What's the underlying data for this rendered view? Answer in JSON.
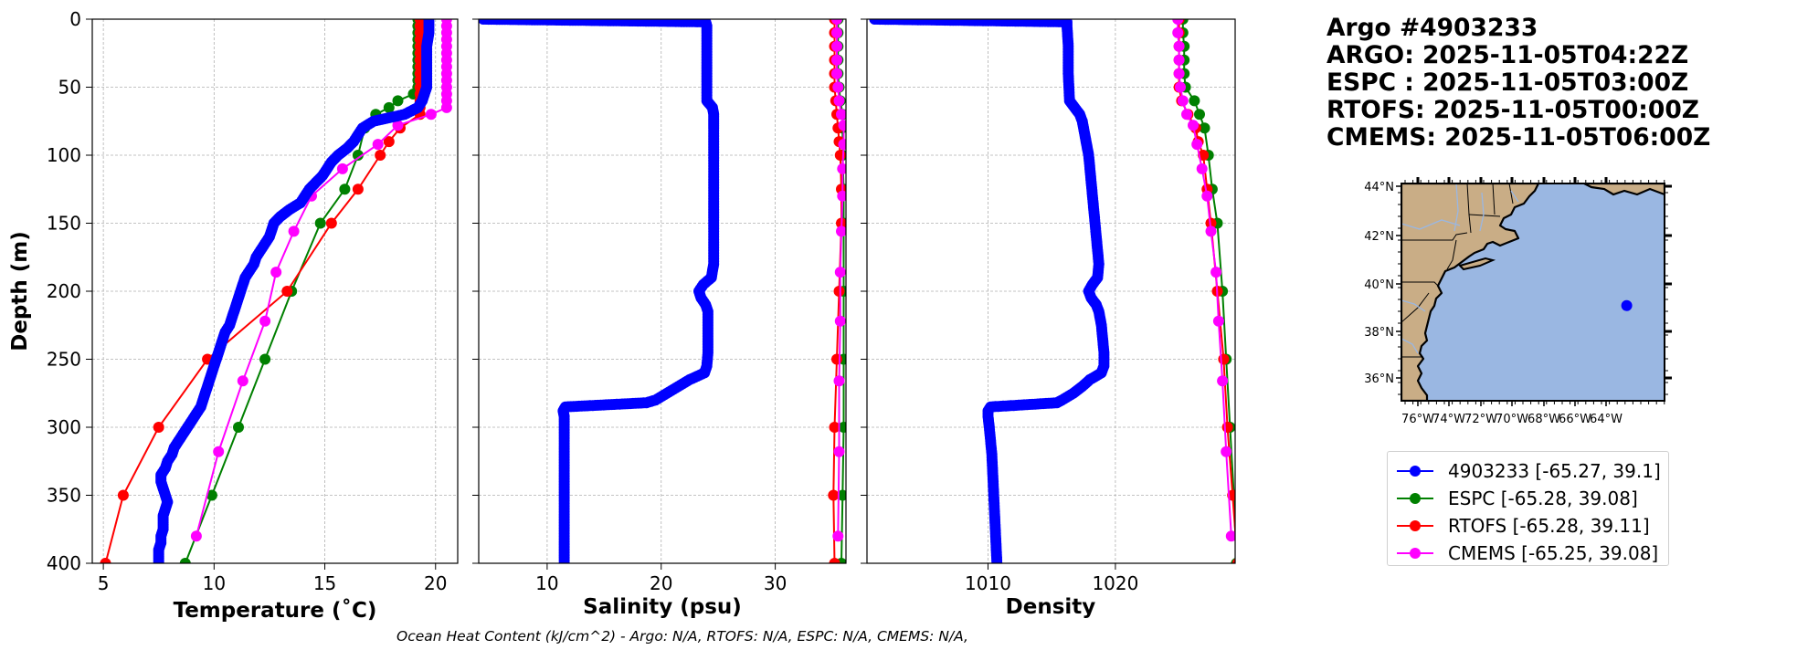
{
  "title": {
    "float_line": "Argo #4903233",
    "argo_line": "ARGO: 2025-11-05T04:22Z",
    "espc_line": "ESPC : 2025-11-05T03:00Z",
    "rtofs_line": "RTOFS: 2025-11-05T00:00Z",
    "cmems_line": "CMEMS: 2025-11-05T06:00Z"
  },
  "footnote": "Ocean Heat Content (kJ/cm^2) - Argo: N/A,  RTOFS: N/A,  ESPC: N/A,  CMEMS: N/A,",
  "colors": {
    "argo": "#0000ff",
    "espc": "#008000",
    "rtofs": "#ff0000",
    "cmems": "#ff00ff",
    "ocean": "#9ab7e2",
    "land": "#c9ad86"
  },
  "legend": [
    {
      "label": "4903233 [-65.27, 39.1]",
      "color": "#0000ff"
    },
    {
      "label": "ESPC [-65.28, 39.08]",
      "color": "#008000"
    },
    {
      "label": "RTOFS [-65.28, 39.11]",
      "color": "#ff0000"
    },
    {
      "label": "CMEMS [-65.25, 39.08]",
      "color": "#ff00ff"
    }
  ],
  "map": {
    "lat_ticks": [
      "44°N",
      "42°N",
      "40°N",
      "38°N",
      "36°N"
    ],
    "lon_ticks": [
      "76°W",
      "74°W",
      "72°W",
      "70°W",
      "68°W",
      "66°W",
      "64°W"
    ],
    "float_position": {
      "lon": -65.27,
      "lat": 39.1
    }
  },
  "chart_data": [
    {
      "type": "line",
      "id": "temperature",
      "xlabel": "Temperature (˚C)",
      "ylabel": "Depth (m)",
      "xlim": [
        4.5,
        21
      ],
      "ylim": [
        400,
        0
      ],
      "xticks": [
        5,
        10,
        15,
        20
      ],
      "yticks": [
        0,
        50,
        100,
        150,
        200,
        250,
        300,
        350,
        400
      ],
      "grid": true,
      "series": [
        {
          "name": "Argo",
          "color": "#0000ff",
          "depth": [
            0,
            10,
            20,
            30,
            40,
            50,
            55,
            60,
            65,
            70,
            75,
            80,
            85,
            90,
            95,
            100,
            105,
            110,
            115,
            120,
            125,
            130,
            135,
            140,
            145,
            150,
            155,
            160,
            165,
            170,
            175,
            180,
            185,
            190,
            195,
            200,
            205,
            210,
            215,
            220,
            225,
            230,
            235,
            240,
            245,
            250,
            255,
            260,
            265,
            270,
            275,
            280,
            285,
            290,
            295,
            300,
            305,
            310,
            315,
            320,
            325,
            330,
            335,
            340,
            345,
            350,
            355,
            360,
            365,
            370,
            375,
            380,
            385,
            390,
            395,
            400
          ],
          "values": [
            19.7,
            19.7,
            19.6,
            19.6,
            19.6,
            19.6,
            19.5,
            19.4,
            19.2,
            18.6,
            17.2,
            16.7,
            16.5,
            16.3,
            16.0,
            15.6,
            15.3,
            15.1,
            14.9,
            14.6,
            14.3,
            14.1,
            13.9,
            13.4,
            13.0,
            12.7,
            12.6,
            12.5,
            12.3,
            12.1,
            11.9,
            11.8,
            11.6,
            11.4,
            11.3,
            11.2,
            11.1,
            11.0,
            10.9,
            10.8,
            10.7,
            10.5,
            10.4,
            10.3,
            10.2,
            10.1,
            10.0,
            9.9,
            9.8,
            9.7,
            9.6,
            9.5,
            9.4,
            9.2,
            9.0,
            8.8,
            8.6,
            8.4,
            8.2,
            8.1,
            7.9,
            7.8,
            7.6,
            7.6,
            7.7,
            7.8,
            7.9,
            7.8,
            7.7,
            7.7,
            7.7,
            7.6,
            7.6,
            7.5,
            7.5,
            7.5
          ]
        },
        {
          "name": "ESPC",
          "color": "#008000",
          "depth": [
            0,
            5,
            10,
            15,
            20,
            25,
            30,
            35,
            40,
            45,
            50,
            55,
            60,
            65,
            70,
            80,
            100,
            125,
            150,
            200,
            250,
            300,
            350,
            400
          ],
          "values": [
            19.2,
            19.2,
            19.2,
            19.2,
            19.2,
            19.2,
            19.2,
            19.2,
            19.2,
            19.2,
            19.2,
            19.0,
            18.3,
            17.9,
            17.3,
            16.8,
            16.5,
            15.9,
            14.8,
            13.5,
            12.3,
            11.1,
            9.9,
            8.7
          ]
        },
        {
          "name": "RTOFS",
          "color": "#ff0000",
          "depth": [
            0,
            5,
            10,
            15,
            20,
            25,
            30,
            35,
            40,
            45,
            50,
            55,
            60,
            65,
            70,
            80,
            90,
            100,
            125,
            150,
            200,
            250,
            300,
            350,
            400
          ],
          "values": [
            19.3,
            19.3,
            19.3,
            19.3,
            19.3,
            19.3,
            19.3,
            19.3,
            19.3,
            19.3,
            19.3,
            19.3,
            19.3,
            19.3,
            19.3,
            18.4,
            17.9,
            17.5,
            16.5,
            15.3,
            13.3,
            9.7,
            7.5,
            5.9,
            5.1
          ]
        },
        {
          "name": "CMEMS",
          "color": "#ff00ff",
          "depth": [
            0,
            5,
            10,
            15,
            20,
            25,
            30,
            35,
            40,
            45,
            50,
            55,
            60,
            65,
            70,
            78,
            92,
            110,
            130,
            156,
            186,
            222,
            266,
            318,
            380
          ],
          "values": [
            20.5,
            20.5,
            20.5,
            20.5,
            20.5,
            20.5,
            20.5,
            20.5,
            20.5,
            20.5,
            20.5,
            20.5,
            20.5,
            20.5,
            19.8,
            18.3,
            17.4,
            15.8,
            14.4,
            13.6,
            12.8,
            12.3,
            11.3,
            10.2,
            9.2
          ]
        }
      ]
    },
    {
      "type": "line",
      "id": "salinity",
      "xlabel": "Salinity (psu)",
      "xlim": [
        4,
        36.2
      ],
      "ylim": [
        400,
        0
      ],
      "xticks": [
        10,
        20,
        30
      ],
      "yticks": [
        0,
        50,
        100,
        150,
        200,
        250,
        300,
        350,
        400
      ],
      "grid": true,
      "series": [
        {
          "name": "Argo",
          "color": "#0000ff",
          "depth": [
            0,
            2,
            5,
            10,
            20,
            30,
            40,
            50,
            60,
            62,
            65,
            70,
            75,
            80,
            90,
            100,
            120,
            140,
            160,
            180,
            190,
            195,
            200,
            205,
            210,
            215,
            225,
            235,
            245,
            255,
            260,
            265,
            270,
            275,
            280,
            282,
            284,
            285,
            288,
            292,
            300,
            320,
            340,
            360,
            380,
            400
          ],
          "values": [
            4.4,
            23.9,
            24.0,
            24.0,
            24.0,
            24.0,
            24.0,
            24.0,
            24.0,
            24.2,
            24.5,
            24.6,
            24.6,
            24.6,
            24.6,
            24.6,
            24.6,
            24.6,
            24.6,
            24.6,
            24.4,
            23.7,
            23.3,
            23.5,
            23.9,
            24.1,
            24.1,
            24.1,
            24.1,
            24.0,
            23.8,
            22.5,
            21.5,
            20.5,
            19.5,
            18.7,
            14.0,
            11.6,
            11.4,
            11.5,
            11.5,
            11.5,
            11.5,
            11.5,
            11.5,
            11.5
          ]
        },
        {
          "name": "ESPC",
          "color": "#008000",
          "depth": [
            0,
            10,
            20,
            30,
            40,
            50,
            60,
            70,
            80,
            100,
            125,
            150,
            200,
            250,
            300,
            350,
            400
          ],
          "values": [
            35.5,
            35.5,
            35.5,
            35.5,
            35.5,
            35.6,
            35.7,
            35.9,
            35.9,
            35.9,
            36.0,
            36.0,
            36.0,
            36.0,
            36.0,
            35.9,
            35.8
          ]
        },
        {
          "name": "RTOFS",
          "color": "#ff0000",
          "depth": [
            0,
            10,
            20,
            30,
            40,
            50,
            60,
            70,
            80,
            90,
            100,
            125,
            150,
            200,
            250,
            300,
            350,
            400
          ],
          "values": [
            35.2,
            35.2,
            35.2,
            35.2,
            35.2,
            35.2,
            35.3,
            35.4,
            35.5,
            35.6,
            35.7,
            35.8,
            35.8,
            35.6,
            35.4,
            35.2,
            35.1,
            35.2
          ]
        },
        {
          "name": "CMEMS",
          "color": "#ff00ff",
          "depth": [
            0,
            10,
            20,
            30,
            40,
            50,
            60,
            70,
            78,
            92,
            110,
            130,
            156,
            186,
            222,
            266,
            318,
            380
          ],
          "values": [
            35.4,
            35.4,
            35.4,
            35.4,
            35.4,
            35.5,
            35.6,
            35.8,
            36.0,
            36.0,
            35.9,
            35.9,
            35.8,
            35.7,
            35.7,
            35.6,
            35.6,
            35.5
          ]
        }
      ]
    },
    {
      "type": "line",
      "id": "density",
      "xlabel": "Density",
      "xlim": [
        1000.5,
        1029.4
      ],
      "ylim": [
        400,
        0
      ],
      "xticks": [
        1010,
        1020
      ],
      "yticks": [
        0,
        50,
        100,
        150,
        200,
        250,
        300,
        350,
        400
      ],
      "grid": true,
      "series": [
        {
          "name": "Argo",
          "color": "#0000ff",
          "depth": [
            0,
            2,
            5,
            20,
            40,
            60,
            65,
            70,
            75,
            80,
            90,
            100,
            120,
            140,
            160,
            180,
            190,
            195,
            200,
            205,
            210,
            215,
            225,
            235,
            245,
            255,
            260,
            265,
            270,
            275,
            280,
            282,
            284,
            285,
            288,
            292,
            300,
            320,
            340,
            360,
            380,
            400
          ],
          "values": [
            1001.1,
            1016.2,
            1016.2,
            1016.3,
            1016.3,
            1016.4,
            1016.8,
            1017.2,
            1017.4,
            1017.5,
            1017.7,
            1017.9,
            1018.1,
            1018.3,
            1018.5,
            1018.7,
            1018.6,
            1018.2,
            1017.9,
            1018.1,
            1018.5,
            1018.7,
            1018.9,
            1019.0,
            1019.1,
            1019.1,
            1018.9,
            1018.0,
            1017.4,
            1016.7,
            1015.8,
            1015.4,
            1012.0,
            1010.2,
            1010.0,
            1010.0,
            1010.1,
            1010.3,
            1010.4,
            1010.5,
            1010.6,
            1010.7
          ]
        },
        {
          "name": "ESPC",
          "color": "#008000",
          "depth": [
            0,
            10,
            20,
            30,
            40,
            50,
            60,
            70,
            80,
            100,
            125,
            150,
            200,
            250,
            300,
            350,
            400
          ],
          "values": [
            1025.3,
            1025.3,
            1025.4,
            1025.4,
            1025.4,
            1025.5,
            1026.2,
            1026.6,
            1027.0,
            1027.3,
            1027.6,
            1028.0,
            1028.4,
            1028.7,
            1029.0,
            1029.3,
            1029.5
          ]
        },
        {
          "name": "RTOFS",
          "color": "#ff0000",
          "depth": [
            0,
            10,
            20,
            30,
            40,
            50,
            60,
            70,
            80,
            90,
            100,
            125,
            150,
            200,
            250,
            300,
            350,
            400
          ],
          "values": [
            1025.0,
            1025.0,
            1025.0,
            1025.0,
            1025.0,
            1025.0,
            1025.2,
            1025.7,
            1026.3,
            1026.5,
            1026.9,
            1027.2,
            1027.5,
            1028.0,
            1028.5,
            1028.8,
            1029.2,
            1029.6
          ]
        },
        {
          "name": "CMEMS",
          "color": "#ff00ff",
          "depth": [
            0,
            10,
            20,
            30,
            40,
            50,
            60,
            70,
            78,
            92,
            110,
            130,
            156,
            186,
            222,
            266,
            318,
            380
          ],
          "values": [
            1024.9,
            1024.9,
            1025.0,
            1025.0,
            1025.0,
            1025.1,
            1025.3,
            1025.6,
            1026.1,
            1026.4,
            1026.8,
            1027.2,
            1027.5,
            1027.9,
            1028.1,
            1028.4,
            1028.7,
            1029.1
          ]
        }
      ]
    }
  ]
}
